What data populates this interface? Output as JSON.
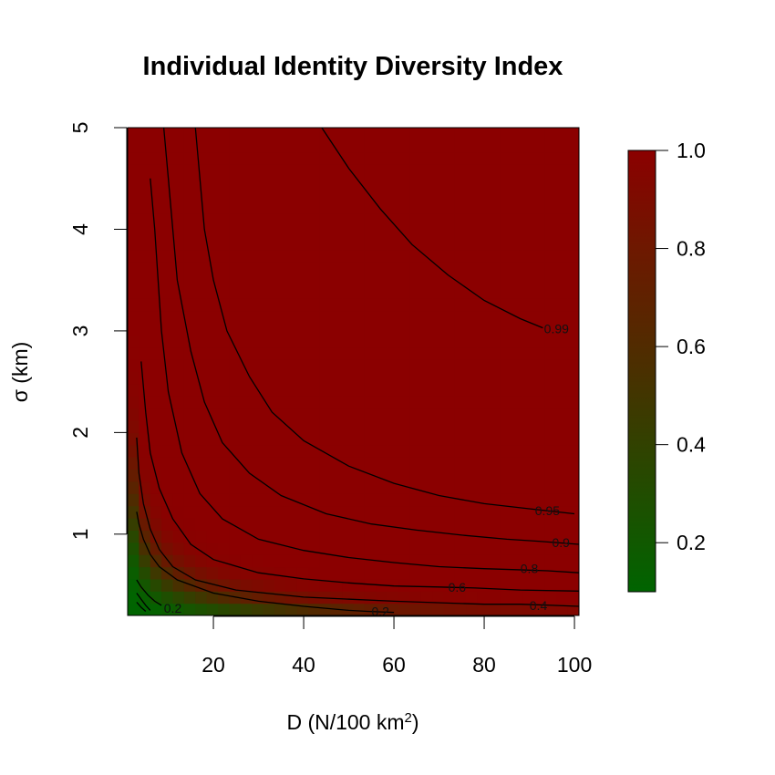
{
  "chart_data": {
    "type": "heatmap",
    "title": "Individual Identity Diversity Index",
    "xlabel_main": "D (N/100 km",
    "xlabel_sup": "2",
    "xlabel_tail": ")",
    "ylabel": "σ (km)",
    "xlim": [
      1,
      101
    ],
    "ylim": [
      0.2,
      5
    ],
    "x_ticks": [
      20,
      40,
      60,
      80,
      100
    ],
    "y_ticks": [
      1,
      2,
      3,
      4,
      5
    ],
    "colorbar": {
      "range": [
        0.1,
        1.0
      ],
      "ticks": [
        "0.2",
        "0.4",
        "0.6",
        "0.8",
        "1.0"
      ],
      "tick_values": [
        0.2,
        0.4,
        0.6,
        0.8,
        1.0
      ],
      "low_color": "#006400",
      "high_color": "#8B0000"
    },
    "contours": [
      {
        "level": "0.99",
        "label_pos": [
          96,
          3.02
        ],
        "points": [
          [
            44,
            5
          ],
          [
            50,
            4.6
          ],
          [
            57,
            4.2
          ],
          [
            64,
            3.85
          ],
          [
            72,
            3.55
          ],
          [
            80,
            3.3
          ],
          [
            88,
            3.12
          ],
          [
            93,
            3.03
          ]
        ]
      },
      {
        "level": "0.95",
        "label_pos": [
          94,
          1.23
        ],
        "points": [
          [
            16,
            5
          ],
          [
            18,
            4
          ],
          [
            20,
            3.5
          ],
          [
            23,
            3
          ],
          [
            28,
            2.55
          ],
          [
            33,
            2.2
          ],
          [
            40,
            1.92
          ],
          [
            50,
            1.67
          ],
          [
            60,
            1.5
          ],
          [
            70,
            1.38
          ],
          [
            80,
            1.3
          ],
          [
            90,
            1.25
          ],
          [
            100,
            1.2
          ]
        ]
      },
      {
        "level": "0.9",
        "label_pos": [
          97,
          0.92
        ],
        "points": [
          [
            9,
            5
          ],
          [
            10,
            4.5
          ],
          [
            12,
            3.5
          ],
          [
            15,
            2.8
          ],
          [
            18,
            2.3
          ],
          [
            22,
            1.9
          ],
          [
            28,
            1.6
          ],
          [
            35,
            1.38
          ],
          [
            45,
            1.2
          ],
          [
            55,
            1.1
          ],
          [
            65,
            1.04
          ],
          [
            75,
            0.99
          ],
          [
            85,
            0.95
          ],
          [
            92,
            0.93
          ],
          [
            101,
            0.9
          ]
        ]
      },
      {
        "level": "0.8",
        "label_pos": [
          90,
          0.66
        ],
        "points": [
          [
            6,
            4.5
          ],
          [
            7,
            4
          ],
          [
            8.5,
            3
          ],
          [
            10,
            2.4
          ],
          [
            13,
            1.8
          ],
          [
            17,
            1.4
          ],
          [
            22,
            1.15
          ],
          [
            30,
            0.95
          ],
          [
            40,
            0.84
          ],
          [
            50,
            0.77
          ],
          [
            60,
            0.72
          ],
          [
            70,
            0.68
          ],
          [
            80,
            0.66
          ],
          [
            87,
            0.65
          ],
          [
            94,
            0.64
          ],
          [
            101,
            0.62
          ]
        ]
      },
      {
        "level": "0.6",
        "label_pos": [
          74,
          0.48
        ],
        "points": [
          [
            4,
            2.7
          ],
          [
            5,
            2.2
          ],
          [
            6,
            1.8
          ],
          [
            8,
            1.45
          ],
          [
            11,
            1.15
          ],
          [
            15,
            0.9
          ],
          [
            20,
            0.75
          ],
          [
            30,
            0.62
          ],
          [
            40,
            0.56
          ],
          [
            50,
            0.52
          ],
          [
            60,
            0.49
          ],
          [
            70,
            0.48
          ],
          [
            78,
            0.47
          ],
          [
            88,
            0.45
          ],
          [
            101,
            0.44
          ]
        ]
      },
      {
        "level": "0.4",
        "label_pos": [
          92,
          0.3
        ],
        "points": [
          [
            3,
            1.95
          ],
          [
            3.5,
            1.6
          ],
          [
            4.5,
            1.3
          ],
          [
            6,
            1.05
          ],
          [
            8,
            0.85
          ],
          [
            11,
            0.68
          ],
          [
            16,
            0.55
          ],
          [
            25,
            0.45
          ],
          [
            40,
            0.38
          ],
          [
            60,
            0.34
          ],
          [
            80,
            0.31
          ],
          [
            88,
            0.31
          ],
          [
            95,
            0.3
          ],
          [
            101,
            0.29
          ]
        ]
      },
      {
        "level": "0.2",
        "label_pos": [
          57,
          0.24
        ],
        "points": [
          [
            3,
            1.22
          ],
          [
            3.5,
            1.1
          ],
          [
            4.5,
            0.95
          ],
          [
            6,
            0.8
          ],
          [
            8,
            0.68
          ],
          [
            12,
            0.55
          ],
          [
            20,
            0.42
          ],
          [
            30,
            0.34
          ],
          [
            40,
            0.29
          ],
          [
            50,
            0.25
          ],
          [
            54,
            0.24
          ],
          [
            60,
            0.23
          ]
        ]
      },
      {
        "level": "0.2",
        "label_pos": [
          11,
          0.27
        ],
        "points": [
          [
            3,
            0.55
          ],
          [
            4,
            0.48
          ],
          [
            5.5,
            0.4
          ],
          [
            7,
            0.34
          ],
          [
            8.5,
            0.3
          ]
        ]
      },
      {
        "level": "",
        "label_pos": null,
        "points": [
          [
            3,
            0.42
          ],
          [
            4,
            0.36
          ],
          [
            5,
            0.3
          ],
          [
            6,
            0.25
          ]
        ]
      },
      {
        "level": "",
        "label_pos": null,
        "points": [
          [
            3,
            0.33
          ],
          [
            4,
            0.28
          ],
          [
            5,
            0.24
          ]
        ]
      }
    ]
  }
}
